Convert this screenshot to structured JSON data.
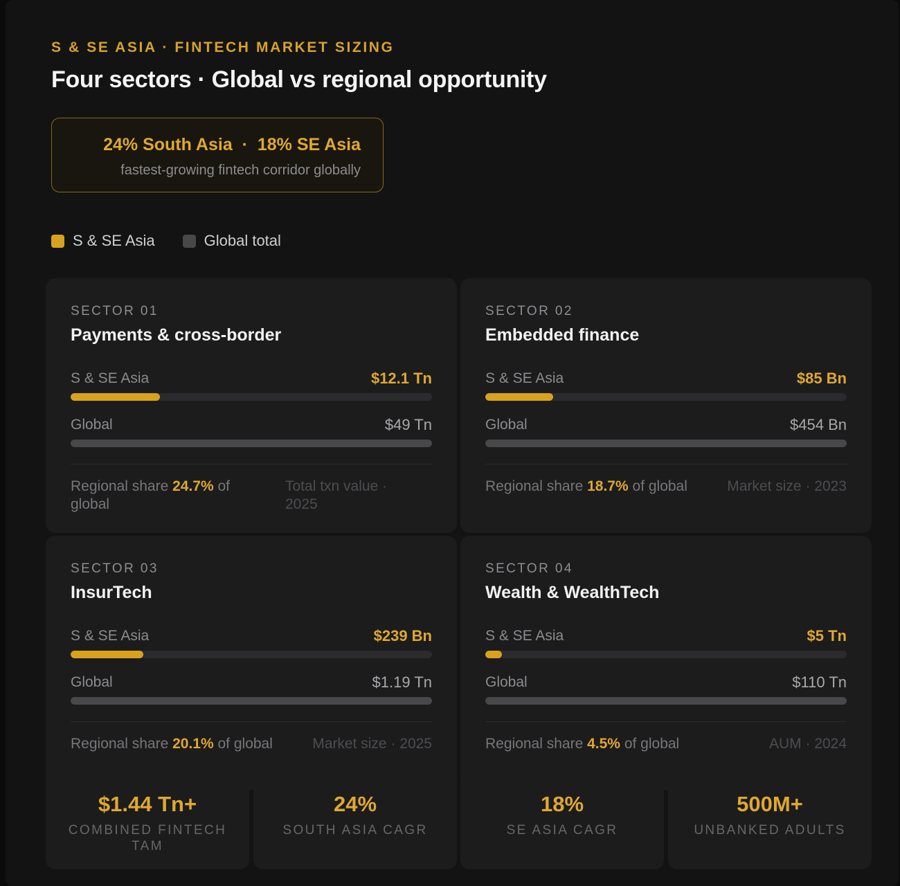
{
  "header": {
    "eyebrow": "S & SE ASIA · FINTECH MARKET SIZING",
    "title": "Four sectors · Global vs regional opportunity"
  },
  "callout": {
    "headline": "24% South Asia  ·  18% SE Asia",
    "subtext": "fastest-growing fintech corridor globally"
  },
  "legend": [
    {
      "label": "S & SE Asia",
      "color": "#d9a21e"
    },
    {
      "label": "Global total",
      "color": "#48484a"
    }
  ],
  "chart_data": {
    "type": "bar",
    "orientation": "horizontal",
    "series_names": [
      "S & SE Asia",
      "Global"
    ],
    "sectors": [
      {
        "sector_no": "SECTOR 01",
        "title": "Payments & cross-border",
        "regional_label": "S & SE Asia",
        "regional_value": "$12.1 Tn",
        "regional_amount": 12.1,
        "global_label": "Global",
        "global_value": "$49 Tn",
        "global_amount": 49,
        "unit": "Tn",
        "share_prefix": "Regional share",
        "share_value": "24.7%",
        "share_suffix": "of global",
        "meta": "Total txn value · 2025"
      },
      {
        "sector_no": "SECTOR 02",
        "title": "Embedded finance",
        "regional_label": "S & SE Asia",
        "regional_value": "$85 Bn",
        "regional_amount": 85,
        "global_label": "Global",
        "global_value": "$454 Bn",
        "global_amount": 454,
        "unit": "Bn",
        "share_prefix": "Regional share",
        "share_value": "18.7%",
        "share_suffix": "of global",
        "meta": "Market size · 2023"
      },
      {
        "sector_no": "SECTOR 03",
        "title": "InsurTech",
        "regional_label": "S & SE Asia",
        "regional_value": "$239 Bn",
        "regional_amount": 239,
        "global_label": "Global",
        "global_value": "$1.19 Tn",
        "global_amount": 1190,
        "unit": "Bn",
        "share_prefix": "Regional share",
        "share_value": "20.1%",
        "share_suffix": "of global",
        "meta": "Market size · 2025"
      },
      {
        "sector_no": "SECTOR 04",
        "title": "Wealth & WealthTech",
        "regional_label": "S & SE Asia",
        "regional_value": "$5 Tn",
        "regional_amount": 5,
        "global_label": "Global",
        "global_value": "$110 Tn",
        "global_amount": 110,
        "unit": "Tn",
        "share_prefix": "Regional share",
        "share_value": "4.5%",
        "share_suffix": "of global",
        "meta": "AUM · 2024"
      }
    ]
  },
  "stats": [
    {
      "value": "$1.44 Tn+",
      "label": "COMBINED FINTECH TAM"
    },
    {
      "value": "24%",
      "label": "SOUTH ASIA CAGR"
    },
    {
      "value": "18%",
      "label": "SE ASIA CAGR"
    },
    {
      "value": "500M+",
      "label": "UNBANKED ADULTS"
    }
  ]
}
